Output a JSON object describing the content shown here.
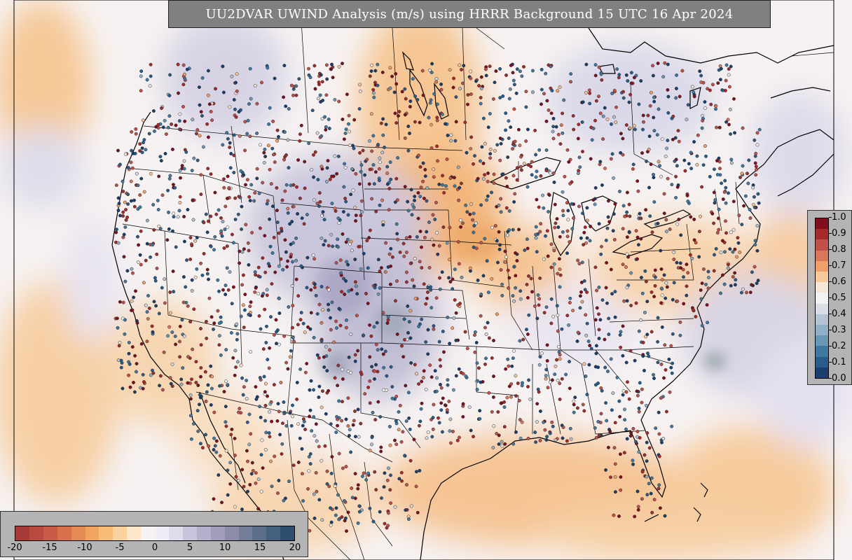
{
  "title": "UU2DVAR UWIND Analysis (m/s) using HRRR Background 15 UTC 16 Apr 2024",
  "colors": {
    "title_bg": "#808080",
    "ocean_base": "#f6f4f8",
    "land_base": "#f9f5f2",
    "orange_field": "#f6c48e",
    "purple_field": "#c8c4dc",
    "boundary": "#000000"
  },
  "colorbar_right": {
    "ticks": [
      "1.0",
      "0.9",
      "0.8",
      "0.7",
      "0.6",
      "0.5",
      "0.4",
      "0.3",
      "0.2",
      "0.1",
      "0.0"
    ],
    "colors": [
      "#7f0f1c",
      "#a52a2a",
      "#c0504a",
      "#d8775a",
      "#eea06a",
      "#f7c89a",
      "#f5e6d8",
      "#f2f2f4",
      "#d8dde6",
      "#b4c4d4",
      "#8fb0c6",
      "#6898b4",
      "#3f78a0",
      "#285c8a",
      "#1a3f6e"
    ]
  },
  "colorbar_bottom": {
    "ticks": [
      "-20",
      "-15",
      "-10",
      "-5",
      "0",
      "5",
      "10",
      "15",
      "20"
    ],
    "colors": [
      "#a63a36",
      "#b84a40",
      "#c85c46",
      "#d8704c",
      "#e48a54",
      "#f0a45e",
      "#f7bc78",
      "#fad2a0",
      "#fbe6cc",
      "#f7f2f2",
      "#eeeef6",
      "#dcdcec",
      "#c8c4dc",
      "#b4b0cc",
      "#a09cba",
      "#8c8ca8",
      "#747c98",
      "#5c6e8a",
      "#44607e",
      "#2e4e70"
    ]
  }
}
